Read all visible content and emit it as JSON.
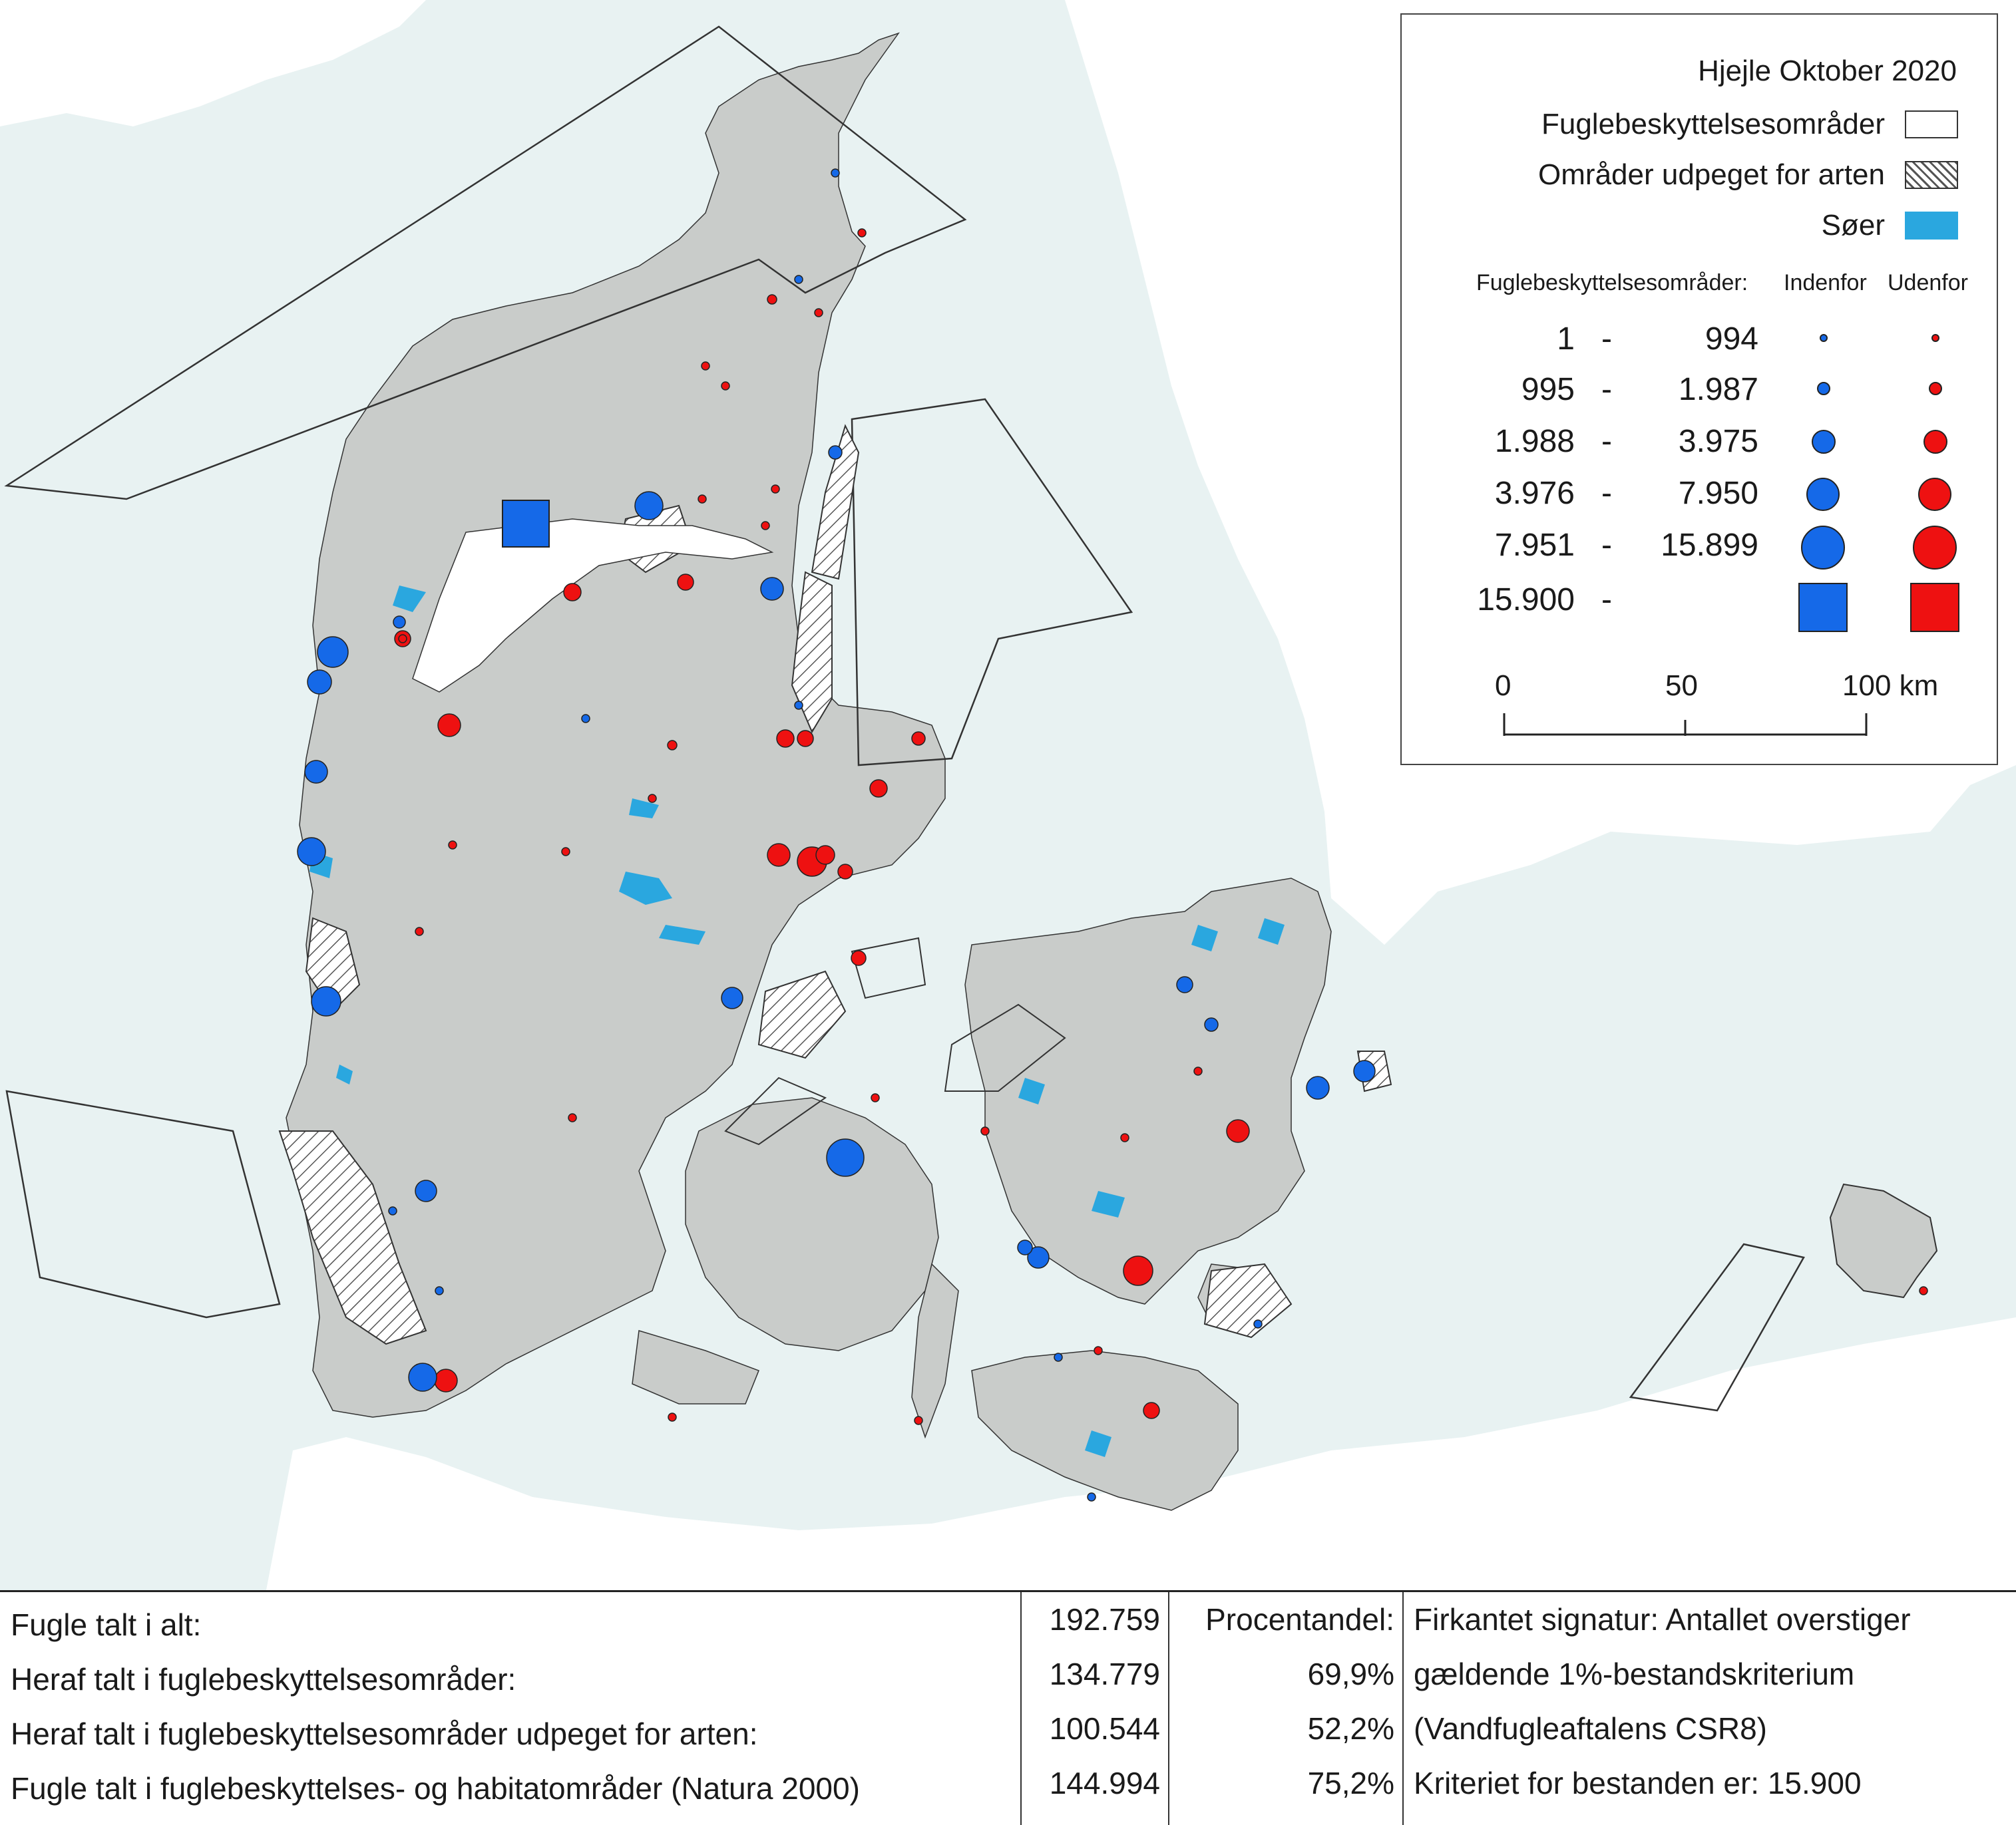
{
  "legend": {
    "title": "Hjejle Oktober 2020",
    "protected": "Fuglebeskyttelsesområder",
    "designated": "Områder udpeget for arten",
    "lakes": "Søer",
    "header_area": "Fuglebeskyttelsesområder:",
    "header_inside": "Indenfor",
    "header_outside": "Udenfor",
    "classes": [
      {
        "from": "1",
        "sep": "-",
        "to": "994"
      },
      {
        "from": "995",
        "sep": "-",
        "to": "1.987"
      },
      {
        "from": "1.988",
        "sep": "-",
        "to": "3.975"
      },
      {
        "from": "3.976",
        "sep": "-",
        "to": "7.950"
      },
      {
        "from": "7.951",
        "sep": "-",
        "to": "15.899"
      },
      {
        "from": "15.900",
        "sep": "-",
        "to": ""
      }
    ],
    "scale": {
      "s0": "0",
      "s50": "50",
      "s100": "100 km"
    }
  },
  "colors": {
    "sea": "#e8f2f2",
    "land": "#c9ccca",
    "outside_land": "#ffffff",
    "lake": "#2aa7df",
    "inside": "#1569e8",
    "outside": "#ee1111"
  },
  "stats": {
    "rows": [
      {
        "label": "Fugle talt i alt:",
        "value": "192.759",
        "pct": ""
      },
      {
        "label": "Heraf talt i fuglebeskyttelsesområder:",
        "value": "134.779",
        "pct": "69,9%"
      },
      {
        "label": "Heraf talt i fuglebeskyttelsesområder udpeget for arten:",
        "value": "100.544",
        "pct": "52,2%"
      },
      {
        "label": "Fugle talt i fuglebeskyttelses- og habitatområder (Natura 2000)",
        "value": "144.994",
        "pct": "75,2%"
      }
    ],
    "pct_header": "Procentandel:",
    "note": [
      "Firkantet signatur: Antallet overstiger",
      "gældende 1%-bestandskriterium",
      "(Vandfugleaftalens CSR8)",
      "Kriteriet for bestanden er: 15.900"
    ]
  }
}
